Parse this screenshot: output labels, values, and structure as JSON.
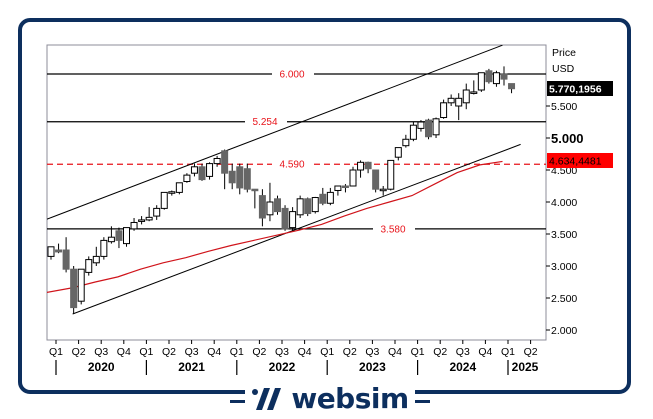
{
  "chart_data": {
    "type": "candlestick",
    "title": "",
    "ylabel": "Price USD",
    "axis_title_line1": "Price",
    "axis_title_line2": "USD",
    "ylim": [
      1.9,
      6.4
    ],
    "y_ticks": [
      {
        "value": 2.0,
        "label": "2.000"
      },
      {
        "value": 2.5,
        "label": "2.500"
      },
      {
        "value": 3.0,
        "label": "3.000"
      },
      {
        "value": 3.5,
        "label": "3.500"
      },
      {
        "value": 4.0,
        "label": "4.000"
      },
      {
        "value": 4.5,
        "label": "4.500"
      },
      {
        "value": 5.0,
        "label": "5.000"
      },
      {
        "value": 5.5,
        "label": "5.500"
      }
    ],
    "x_quarter_labels": [
      "Q1",
      "Q2",
      "Q3",
      "Q4",
      "Q1",
      "Q2",
      "Q3",
      "Q4",
      "Q1",
      "Q2",
      "Q3",
      "Q4",
      "Q1",
      "Q2",
      "Q3",
      "Q4",
      "Q1",
      "Q2",
      "Q3",
      "Q4",
      "Q1",
      "Q2"
    ],
    "x_year_labels": [
      "2020",
      "2021",
      "2022",
      "2023",
      "2024",
      "2025"
    ],
    "last_price_label": "5.770,1956",
    "ma_value_label": "4.634,4481",
    "horizontal_levels": [
      {
        "value": 6.0,
        "label": "6.000",
        "style": "solid"
      },
      {
        "value": 5.254,
        "label": "5.254",
        "style": "solid"
      },
      {
        "value": 4.59,
        "label": "4.590",
        "style": "dashed-red"
      },
      {
        "value": 3.58,
        "label": "3.580",
        "style": "solid"
      }
    ],
    "channel": {
      "upper": [
        [
          2020.0,
          3.75
        ],
        [
          2025.0,
          6.45
        ]
      ],
      "lower": [
        [
          2020.25,
          2.25
        ],
        [
          2025.2,
          4.9
        ]
      ]
    },
    "moving_average": [
      [
        2020.0,
        2.58
      ],
      [
        2020.25,
        2.66
      ],
      [
        2020.5,
        2.75
      ],
      [
        2020.75,
        2.83
      ],
      [
        2021.0,
        2.95
      ],
      [
        2021.25,
        3.05
      ],
      [
        2021.5,
        3.13
      ],
      [
        2021.75,
        3.23
      ],
      [
        2022.0,
        3.32
      ],
      [
        2022.25,
        3.4
      ],
      [
        2022.5,
        3.48
      ],
      [
        2022.75,
        3.56
      ],
      [
        2023.0,
        3.65
      ],
      [
        2023.25,
        3.78
      ],
      [
        2023.5,
        3.9
      ],
      [
        2023.75,
        4.0
      ],
      [
        2024.0,
        4.1
      ],
      [
        2024.25,
        4.28
      ],
      [
        2024.5,
        4.46
      ],
      [
        2024.75,
        4.58
      ],
      [
        2025.0,
        4.634
      ]
    ],
    "candles": [
      {
        "t": "2020-01",
        "o": 3.15,
        "h": 3.25,
        "c": 3.3,
        "l": 3.1
      },
      {
        "t": "2020-02",
        "o": 3.25,
        "h": 3.35,
        "c": 3.22,
        "l": 3.2
      },
      {
        "t": "2020-03",
        "o": 3.25,
        "h": 3.45,
        "c": 2.95,
        "l": 2.9
      },
      {
        "t": "2020-04",
        "o": 2.95,
        "h": 3.0,
        "c": 2.35,
        "l": 2.25
      },
      {
        "t": "2020-05",
        "o": 2.45,
        "h": 2.95,
        "c": 2.95,
        "l": 2.4
      },
      {
        "t": "2020-06",
        "o": 2.9,
        "h": 3.15,
        "c": 3.1,
        "l": 2.85
      },
      {
        "t": "2020-07",
        "o": 3.05,
        "h": 3.3,
        "c": 3.15,
        "l": 3.0
      },
      {
        "t": "2020-08",
        "o": 3.15,
        "h": 3.45,
        "c": 3.4,
        "l": 3.1
      },
      {
        "t": "2020-09",
        "o": 3.38,
        "h": 3.62,
        "c": 3.45,
        "l": 3.35
      },
      {
        "t": "2020-10",
        "o": 3.55,
        "h": 3.6,
        "c": 3.4,
        "l": 3.28
      },
      {
        "t": "2020-11",
        "o": 3.35,
        "h": 3.55,
        "c": 3.6,
        "l": 3.3
      },
      {
        "t": "2020-12",
        "o": 3.58,
        "h": 3.75,
        "c": 3.68,
        "l": 3.55
      },
      {
        "t": "2021-01",
        "o": 3.7,
        "h": 3.78,
        "c": 3.72,
        "l": 3.65
      },
      {
        "t": "2021-02",
        "o": 3.72,
        "h": 3.92,
        "c": 3.76,
        "l": 3.7
      },
      {
        "t": "2021-03",
        "o": 3.78,
        "h": 3.95,
        "c": 3.9,
        "l": 3.72
      },
      {
        "t": "2021-04",
        "o": 3.9,
        "h": 4.15,
        "c": 4.15,
        "l": 3.88
      },
      {
        "t": "2021-05",
        "o": 4.15,
        "h": 4.18,
        "c": 4.16,
        "l": 4.1
      },
      {
        "t": "2021-06",
        "o": 4.15,
        "h": 4.3,
        "c": 4.3,
        "l": 4.12
      },
      {
        "t": "2021-07",
        "o": 4.32,
        "h": 4.45,
        "c": 4.42,
        "l": 4.3
      },
      {
        "t": "2021-08",
        "o": 4.45,
        "h": 4.6,
        "c": 4.55,
        "l": 4.4
      },
      {
        "t": "2021-09",
        "o": 4.55,
        "h": 4.6,
        "c": 4.35,
        "l": 4.33
      },
      {
        "t": "2021-10",
        "o": 4.4,
        "h": 4.62,
        "c": 4.6,
        "l": 4.35
      },
      {
        "t": "2021-11",
        "o": 4.6,
        "h": 4.72,
        "c": 4.68,
        "l": 4.55
      },
      {
        "t": "2021-12",
        "o": 4.8,
        "h": 4.82,
        "c": 4.45,
        "l": 4.2
      },
      {
        "t": "2022-01",
        "o": 4.48,
        "h": 4.6,
        "c": 4.3,
        "l": 4.2
      },
      {
        "t": "2022-02",
        "o": 4.55,
        "h": 4.6,
        "c": 4.22,
        "l": 4.12
      },
      {
        "t": "2022-03",
        "o": 4.52,
        "h": 4.6,
        "c": 4.2,
        "l": 4.15
      },
      {
        "t": "2022-04",
        "o": 4.2,
        "h": 4.2,
        "c": 4.18,
        "l": 3.9
      },
      {
        "t": "2022-05",
        "o": 4.1,
        "h": 4.2,
        "c": 3.75,
        "l": 3.62
      },
      {
        "t": "2022-06",
        "o": 3.8,
        "h": 4.3,
        "c": 4.0,
        "l": 3.7
      },
      {
        "t": "2022-07",
        "o": 4.05,
        "h": 4.1,
        "c": 3.85,
        "l": 3.8
      },
      {
        "t": "2022-08",
        "o": 3.9,
        "h": 3.95,
        "c": 3.58,
        "l": 3.55
      },
      {
        "t": "2022-09",
        "o": 3.6,
        "h": 3.92,
        "c": 3.85,
        "l": 3.55
      },
      {
        "t": "2022-10",
        "o": 3.8,
        "h": 4.1,
        "c": 4.05,
        "l": 3.75
      },
      {
        "t": "2022-11",
        "o": 4.05,
        "h": 4.07,
        "c": 3.82,
        "l": 3.78
      },
      {
        "t": "2022-12",
        "o": 3.85,
        "h": 4.08,
        "c": 4.07,
        "l": 3.82
      },
      {
        "t": "2023-01",
        "o": 4.12,
        "h": 4.22,
        "c": 3.98,
        "l": 3.95
      },
      {
        "t": "2023-02",
        "o": 3.98,
        "h": 4.22,
        "c": 4.15,
        "l": 3.95
      },
      {
        "t": "2023-03",
        "o": 4.18,
        "h": 4.25,
        "c": 4.25,
        "l": 4.1
      },
      {
        "t": "2023-04",
        "o": 4.25,
        "h": 4.28,
        "c": 4.24,
        "l": 4.15
      },
      {
        "t": "2023-05",
        "o": 4.25,
        "h": 4.55,
        "c": 4.5,
        "l": 4.25
      },
      {
        "t": "2023-06",
        "o": 4.5,
        "h": 4.65,
        "c": 4.62,
        "l": 4.38
      },
      {
        "t": "2023-07",
        "o": 4.62,
        "h": 4.63,
        "c": 4.52,
        "l": 4.45
      },
      {
        "t": "2023-08",
        "o": 4.5,
        "h": 4.5,
        "c": 4.2,
        "l": 4.15
      },
      {
        "t": "2023-09",
        "o": 4.2,
        "h": 4.25,
        "c": 4.2,
        "l": 4.1
      },
      {
        "t": "2023-10",
        "o": 4.2,
        "h": 4.65,
        "c": 4.65,
        "l": 4.18
      },
      {
        "t": "2023-11",
        "o": 4.7,
        "h": 4.82,
        "c": 4.85,
        "l": 4.65
      },
      {
        "t": "2023-12",
        "o": 4.88,
        "h": 5.05,
        "c": 4.98,
        "l": 4.85
      },
      {
        "t": "2024-01",
        "o": 4.98,
        "h": 5.25,
        "c": 5.2,
        "l": 4.95
      },
      {
        "t": "2024-02",
        "o": 5.15,
        "h": 5.28,
        "c": 5.25,
        "l": 5.1
      },
      {
        "t": "2024-03",
        "o": 5.28,
        "h": 5.3,
        "c": 5.02,
        "l": 4.98
      },
      {
        "t": "2024-04",
        "o": 5.05,
        "h": 5.32,
        "c": 5.3,
        "l": 5.0
      },
      {
        "t": "2024-05",
        "o": 5.32,
        "h": 5.6,
        "c": 5.55,
        "l": 5.3
      },
      {
        "t": "2024-06",
        "o": 5.55,
        "h": 5.68,
        "c": 5.62,
        "l": 5.5
      },
      {
        "t": "2024-07",
        "o": 5.5,
        "h": 5.7,
        "c": 5.62,
        "l": 5.28
      },
      {
        "t": "2024-08",
        "o": 5.55,
        "h": 5.85,
        "c": 5.75,
        "l": 5.45
      },
      {
        "t": "2024-09",
        "o": 5.72,
        "h": 5.9,
        "c": 5.72,
        "l": 5.68
      },
      {
        "t": "2024-10",
        "o": 5.75,
        "h": 6.0,
        "c": 6.02,
        "l": 5.72
      },
      {
        "t": "2024-11",
        "o": 6.05,
        "h": 6.08,
        "c": 5.88,
        "l": 5.85
      },
      {
        "t": "2024-12",
        "o": 5.85,
        "h": 6.05,
        "c": 6.02,
        "l": 5.8
      },
      {
        "t": "2025-01",
        "o": 6.0,
        "h": 6.12,
        "c": 5.92,
        "l": 5.82
      },
      {
        "t": "2025-02",
        "o": 5.85,
        "h": 5.85,
        "c": 5.77,
        "l": 5.7
      }
    ],
    "grid": false,
    "legend": "none"
  },
  "branding": {
    "logo_text": "websim"
  },
  "colors": {
    "frame": "#0d2f5e",
    "bull_candle": "#ffffff",
    "bear_candle": "#666666",
    "support_line": "#000000",
    "level_label": "#e8141b",
    "dashed_level": "#e8141b",
    "moving_average": "#d0141b",
    "last_price_bg": "#000000",
    "ma_label_bg": "#ff0000"
  }
}
